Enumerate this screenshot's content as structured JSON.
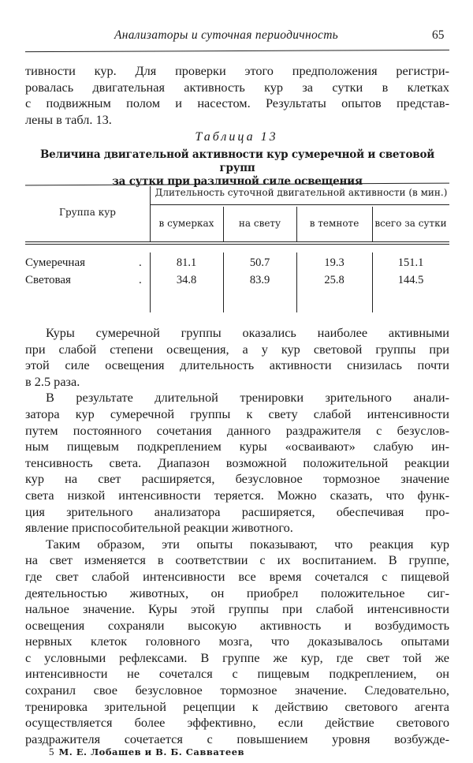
{
  "header": {
    "running_title": "Анализаторы и суточная периодичность",
    "page_number": "65"
  },
  "intro": {
    "lines": [
      "тивности кур. Для проверки этого предположения регистри-",
      "ровалась двигательная активность кур за сутки в клетках",
      "с подвижным полом и насестом. Результаты опытов представ-",
      "лены в табл. 13."
    ]
  },
  "table": {
    "label": "Таблица 13",
    "title_line1": "Величина двигательной активности кур сумеречной и световой групп",
    "title_line2": "за сутки при различной силе освещения",
    "group_header": "Группа кур",
    "span_header": "Длительность суточной двигательной активности (в мин.)",
    "columns": [
      "в сумерках",
      "на свету",
      "в темноте",
      "всего за сутки"
    ],
    "rows": [
      {
        "group": "Сумеречная",
        "values": [
          "81.1",
          "50.7",
          "19.3",
          "151.1"
        ]
      },
      {
        "group": "Световая",
        "values": [
          "34.8",
          "83.9",
          "25.8",
          "144.5"
        ]
      }
    ]
  },
  "body": {
    "paragraphs": [
      {
        "lines": [
          "Куры сумеречной группы оказались наиболее активными",
          "при слабой степени освещения, а у кур световой группы при",
          "этой силе освещения длительность активности снизилась почти",
          "в 2.5 раза."
        ]
      },
      {
        "lines": [
          "В результате длительной тренировки зрительного анали-",
          "затора кур сумеречной группы к свету слабой интенсивности",
          "путем постоянного сочетания данного раздражителя с безуслов-",
          "ным пищевым подкреплением куры «осваивают» слабую ин-",
          "тенсивность света. Диапазон возможной положительной реакции",
          "кур на свет расширяется, безусловное тормозное значение",
          "света низкой интенсивности теряется. Можно сказать, что функ-",
          "ция зрительного анализатора расширяется, обеспечивая про-",
          "явление приспособительной реакции животного."
        ]
      },
      {
        "lines": [
          "Таким образом, эти опыты показывают, что реакция кур",
          "на свет изменяется в соответствии с их воспитанием. В группе,",
          "где свет слабой интенсивности все время сочетался с пищевой",
          "деятельностью животных, он приобрел положительное сиг-",
          "нальное значение. Куры этой группы при слабой интенсивности",
          "освещения сохраняли высокую активность и возбудимость",
          "нервных клеток головного мозга, что доказывалось опытами",
          "с условными рефлексами. В группе же кур, где свет той же",
          "интенсивности не сочетался с пищевым подкреплением, он",
          "сохранил свое безусловное тормозное значение. Следовательно,",
          "тренировка зрительной рецепции к действию светового агента",
          "осуществляется более эффективно, если действие светового",
          "раздражителя сочетается с повышением уровня возбужде-"
        ],
        "continues": true
      }
    ]
  },
  "footer": {
    "signature_number": "5",
    "signature_text": "М. Е. Лобашев и В. Б. Савватеев"
  }
}
